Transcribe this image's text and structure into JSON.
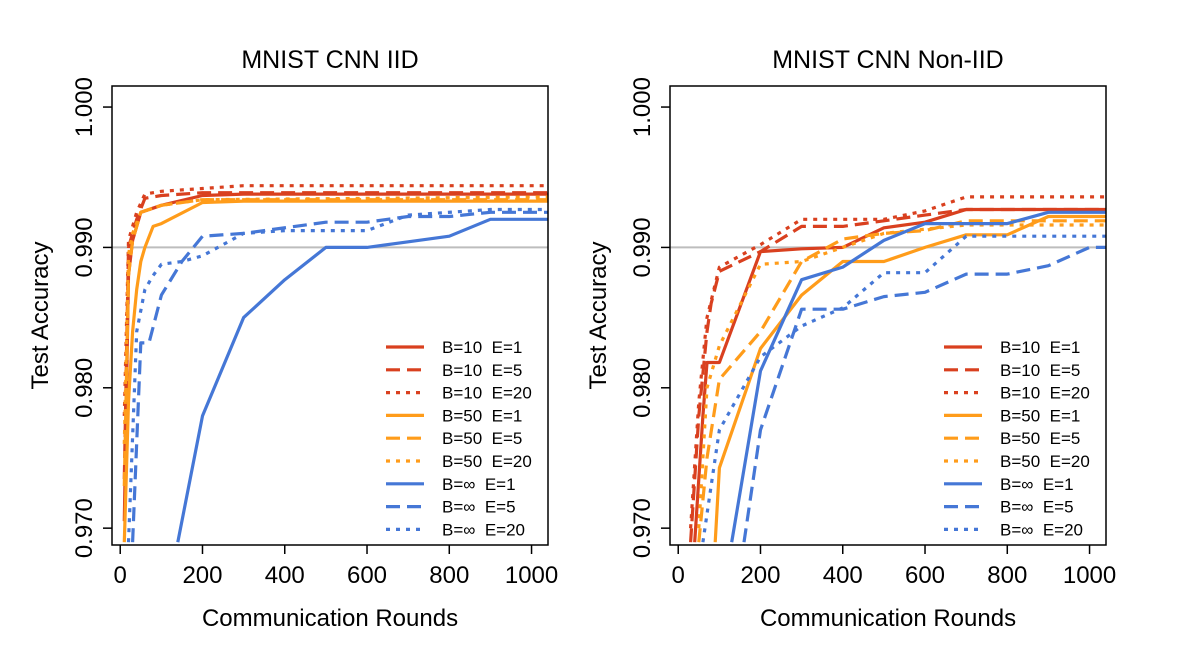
{
  "chart_data": [
    {
      "type": "line",
      "title": "MNIST CNN IID",
      "xlabel": "Communication Rounds",
      "ylabel": "Test Accuracy",
      "xlim": [
        -20,
        1040
      ],
      "ylim": [
        0.9688,
        1.0015
      ],
      "xticks": [
        0,
        200,
        400,
        600,
        800,
        1000
      ],
      "xtick_labels": [
        "0",
        "200",
        "400",
        "600",
        "800",
        "1000"
      ],
      "yticks": [
        0.97,
        0.98,
        0.99,
        1.0
      ],
      "ytick_labels": [
        "0.970",
        "0.980",
        "0.990",
        "1.000"
      ],
      "reference_line": 0.99,
      "legend_position": "bottom-right",
      "series": [
        {
          "name": "B=10  E=1",
          "color": "#d9401f",
          "dash": "solid",
          "x": [
            10,
            20,
            30,
            50,
            100,
            200,
            300,
            1040
          ],
          "y": [
            0.9705,
            0.988,
            0.9905,
            0.9925,
            0.993,
            0.9937,
            0.9938,
            0.9938
          ]
        },
        {
          "name": "B=10  E=5",
          "color": "#d9401f",
          "dash": "dashed",
          "x": [
            10,
            20,
            40,
            60,
            100,
            200,
            1040
          ],
          "y": [
            0.9735,
            0.99,
            0.992,
            0.9935,
            0.9937,
            0.9939,
            0.9939
          ]
        },
        {
          "name": "B=10  E=20",
          "color": "#d9401f",
          "dash": "dotted",
          "x": [
            10,
            20,
            40,
            60,
            100,
            200,
            300,
            1040
          ],
          "y": [
            0.978,
            0.9905,
            0.9925,
            0.9938,
            0.994,
            0.9942,
            0.9944,
            0.9944
          ]
        },
        {
          "name": "B=50  E=1",
          "color": "#ff9c1a",
          "dash": "solid",
          "x": [
            10,
            20,
            30,
            40,
            50,
            60,
            80,
            100,
            200,
            300,
            1040
          ],
          "y": [
            0.969,
            0.979,
            0.984,
            0.987,
            0.989,
            0.99,
            0.9915,
            0.9917,
            0.9932,
            0.9933,
            0.9933
          ]
        },
        {
          "name": "B=50  E=5",
          "color": "#ff9c1a",
          "dash": "dashed",
          "x": [
            10,
            20,
            30,
            50,
            100,
            200,
            1040
          ],
          "y": [
            0.973,
            0.988,
            0.9905,
            0.9925,
            0.993,
            0.9934,
            0.9934
          ]
        },
        {
          "name": "B=50  E=20",
          "color": "#ff9c1a",
          "dash": "dotted",
          "x": [
            10,
            20,
            30,
            50,
            100,
            200,
            1040
          ],
          "y": [
            0.976,
            0.9895,
            0.991,
            0.9925,
            0.993,
            0.9934,
            0.9936
          ]
        },
        {
          "name": "B=∞  E=1",
          "color": "#4577d6",
          "dash": "solid",
          "x": [
            140,
            200,
            300,
            400,
            500,
            600,
            700,
            800,
            900,
            1040
          ],
          "y": [
            0.969,
            0.978,
            0.985,
            0.9877,
            0.99,
            0.99,
            0.9904,
            0.9908,
            0.992,
            0.992
          ]
        },
        {
          "name": "B=∞  E=5",
          "color": "#4577d6",
          "dash": "dashed",
          "x": [
            30,
            50,
            70,
            100,
            150,
            200,
            300,
            500,
            600,
            700,
            800,
            900,
            1040
          ],
          "y": [
            0.969,
            0.9832,
            0.9832,
            0.9866,
            0.989,
            0.9908,
            0.991,
            0.9918,
            0.9918,
            0.9922,
            0.9922,
            0.9925,
            0.9925
          ]
        },
        {
          "name": "B=∞  E=20",
          "color": "#4577d6",
          "dash": "dotted",
          "x": [
            20,
            40,
            60,
            80,
            100,
            150,
            200,
            300,
            400,
            600,
            700,
            900,
            1040
          ],
          "y": [
            0.969,
            0.984,
            0.987,
            0.988,
            0.9888,
            0.989,
            0.9894,
            0.991,
            0.9912,
            0.9912,
            0.9923,
            0.9927,
            0.9927
          ]
        }
      ]
    },
    {
      "type": "line",
      "title": "MNIST CNN Non-IID",
      "xlabel": "Communication Rounds",
      "ylabel": "Test Accuracy",
      "xlim": [
        -20,
        1040
      ],
      "ylim": [
        0.9688,
        1.0015
      ],
      "xticks": [
        0,
        200,
        400,
        600,
        800,
        1000
      ],
      "xtick_labels": [
        "0",
        "200",
        "400",
        "600",
        "800",
        "1000"
      ],
      "yticks": [
        0.97,
        0.98,
        0.99,
        1.0
      ],
      "ytick_labels": [
        "0.970",
        "0.980",
        "0.990",
        "1.000"
      ],
      "reference_line": 0.99,
      "legend_position": "bottom-right",
      "series": [
        {
          "name": "B=10  E=1",
          "color": "#d9401f",
          "dash": "solid",
          "x": [
            40,
            60,
            70,
            100,
            200,
            300,
            400,
            500,
            600,
            700,
            800,
            900,
            1040
          ],
          "y": [
            0.969,
            0.978,
            0.9818,
            0.9818,
            0.9897,
            0.9899,
            0.99,
            0.9914,
            0.9918,
            0.9927,
            0.9927,
            0.9927,
            0.9927
          ]
        },
        {
          "name": "B=10  E=5",
          "color": "#d9401f",
          "dash": "dashed",
          "x": [
            30,
            50,
            70,
            80,
            100,
            200,
            300,
            400,
            500,
            600,
            700,
            1040
          ],
          "y": [
            0.969,
            0.978,
            0.984,
            0.986,
            0.9883,
            0.9897,
            0.9915,
            0.9915,
            0.9919,
            0.9923,
            0.9927,
            0.9927
          ]
        },
        {
          "name": "B=10  E=20",
          "color": "#d9401f",
          "dash": "dotted",
          "x": [
            30,
            50,
            70,
            100,
            200,
            300,
            400,
            500,
            600,
            700,
            1040
          ],
          "y": [
            0.97,
            0.979,
            0.985,
            0.9886,
            0.9902,
            0.992,
            0.992,
            0.992,
            0.9926,
            0.9936,
            0.9936
          ]
        },
        {
          "name": "B=50  E=1",
          "color": "#ff9c1a",
          "dash": "solid",
          "x": [
            90,
            100,
            200,
            300,
            400,
            500,
            600,
            700,
            800,
            900,
            1040
          ],
          "y": [
            0.969,
            0.9743,
            0.9828,
            0.9866,
            0.989,
            0.989,
            0.99,
            0.9909,
            0.9909,
            0.9922,
            0.9922
          ]
        },
        {
          "name": "B=50  E=5",
          "color": "#ff9c1a",
          "dash": "dashed",
          "x": [
            50,
            70,
            100,
            200,
            300,
            400,
            500,
            600,
            700,
            800,
            900,
            1040
          ],
          "y": [
            0.969,
            0.975,
            0.9806,
            0.984,
            0.989,
            0.9906,
            0.991,
            0.9912,
            0.9919,
            0.9919,
            0.9919,
            0.9919
          ]
        },
        {
          "name": "B=50  E=20",
          "color": "#ff9c1a",
          "dash": "dotted",
          "x": [
            50,
            70,
            100,
            200,
            300,
            400,
            500,
            600,
            700,
            800,
            900,
            1040
          ],
          "y": [
            0.97,
            0.98,
            0.983,
            0.9888,
            0.989,
            0.99,
            0.991,
            0.9913,
            0.9916,
            0.9916,
            0.9916,
            0.9916
          ]
        },
        {
          "name": "B=∞  E=1",
          "color": "#4577d6",
          "dash": "solid",
          "x": [
            130,
            200,
            300,
            400,
            500,
            600,
            700,
            800,
            900,
            1040
          ],
          "y": [
            0.969,
            0.9812,
            0.9877,
            0.9886,
            0.9905,
            0.9917,
            0.9917,
            0.9917,
            0.9925,
            0.9925
          ]
        },
        {
          "name": "B=∞  E=5",
          "color": "#4577d6",
          "dash": "dashed",
          "x": [
            160,
            200,
            300,
            400,
            500,
            600,
            700,
            800,
            900,
            1000,
            1040
          ],
          "y": [
            0.969,
            0.977,
            0.9856,
            0.9856,
            0.9865,
            0.9868,
            0.9881,
            0.9881,
            0.9887,
            0.99,
            0.99
          ]
        },
        {
          "name": "B=∞  E=20",
          "color": "#4577d6",
          "dash": "dotted",
          "x": [
            60,
            80,
            100,
            200,
            300,
            400,
            500,
            600,
            700,
            1040
          ],
          "y": [
            0.969,
            0.973,
            0.977,
            0.9822,
            0.9844,
            0.9857,
            0.9882,
            0.9882,
            0.9908,
            0.9908
          ]
        }
      ]
    }
  ]
}
